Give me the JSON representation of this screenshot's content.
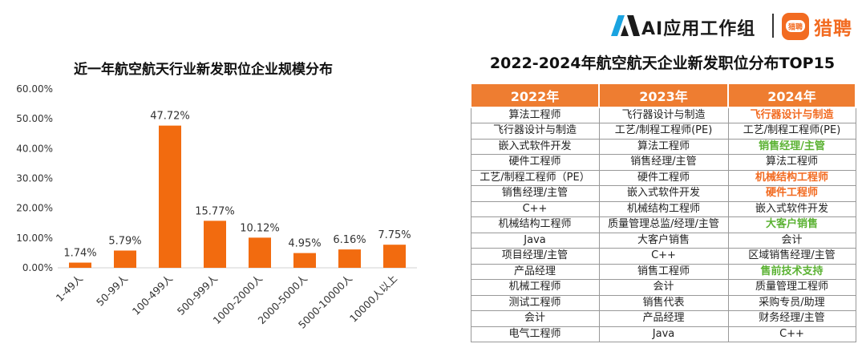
{
  "brand": {
    "ai_group": "AI应用工作组",
    "liepin_logo_text": "猎聘",
    "liepin_name": "猎聘",
    "accent_color": "#f26b21",
    "ai_mark_color": "#1aa3e0"
  },
  "chart_data": {
    "type": "bar",
    "title": "近一年航空航天行业新发职位企业规模分布",
    "categories": [
      "1-49人",
      "50-99人",
      "100-499人",
      "500-999人",
      "1000-2000人",
      "2000-5000人",
      "5000-10000人",
      "10000人以上"
    ],
    "values": [
      1.74,
      5.79,
      47.72,
      15.77,
      10.12,
      4.95,
      6.16,
      7.75
    ],
    "value_labels": [
      "1.74%",
      "5.79%",
      "47.72%",
      "15.77%",
      "10.12%",
      "4.95%",
      "6.16%",
      "7.75%"
    ],
    "y_ticks": [
      "0.00%",
      "10.00%",
      "20.00%",
      "30.00%",
      "40.00%",
      "50.00%",
      "60.00%"
    ],
    "ylim": [
      0,
      60
    ],
    "bar_color": "#f26b0f",
    "grid": false
  },
  "table": {
    "title": "2022-2024年航空航天企业新发职位分布TOP15",
    "header_color": "#ee7d31",
    "highlight_orange": "#f26b21",
    "highlight_green": "#5bb233",
    "headers": [
      "2022年",
      "2023年",
      "2024年"
    ],
    "rows": [
      [
        "算法工程师",
        "飞行器设计与制造",
        "飞行器设计与制造"
      ],
      [
        "飞行器设计与制造",
        "工艺/制程工程师(PE)",
        "工艺/制程工程师(PE)"
      ],
      [
        "嵌入式软件开发",
        "算法工程师",
        "销售经理/主管"
      ],
      [
        "硬件工程师",
        "销售经理/主管",
        "算法工程师"
      ],
      [
        "工艺/制程工程师（PE）",
        "硬件工程师",
        "机械结构工程师"
      ],
      [
        "销售经理/主管",
        "嵌入式软件开发",
        "硬件工程师"
      ],
      [
        "C++",
        "机械结构工程师",
        "嵌入式软件开发"
      ],
      [
        "机械结构工程师",
        "质量管理总监/经理/主管",
        "大客户销售"
      ],
      [
        "Java",
        "大客户销售",
        "会计"
      ],
      [
        "项目经理/主管",
        "C++",
        "区域销售经理/主管"
      ],
      [
        "产品经理",
        "销售工程师",
        "售前技术支持"
      ],
      [
        "机械工程师",
        "会计",
        "质量管理工程师"
      ],
      [
        "测试工程师",
        "销售代表",
        "采购专员/助理"
      ],
      [
        "会计",
        "产品经理",
        "财务经理/主管"
      ],
      [
        "电气工程师",
        "Java",
        "C++"
      ]
    ],
    "highlights_2024": [
      "orange",
      "",
      "green",
      "",
      "orange",
      "orange",
      "",
      "green",
      "",
      "",
      "green",
      "",
      "",
      "",
      ""
    ]
  }
}
